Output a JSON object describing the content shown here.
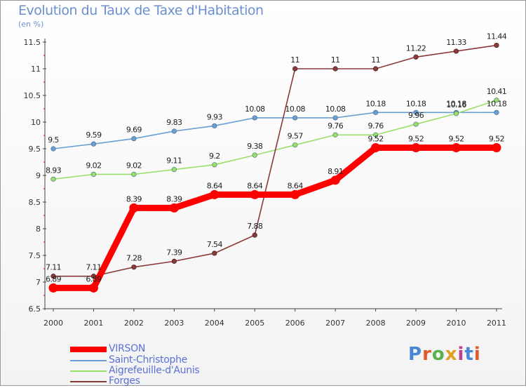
{
  "chart_data": {
    "type": "line",
    "title": "Evolution du Taux de Taxe d'Habitation",
    "subtitle": "(en %)",
    "x": [
      "2000",
      "2001",
      "2002",
      "2003",
      "2004",
      "2005",
      "2006",
      "2007",
      "2008",
      "2009",
      "2010",
      "2011"
    ],
    "ylim": [
      6.5,
      11.5
    ],
    "yticks": [
      "6.5",
      "7",
      "7.5",
      "8",
      "8.5",
      "9",
      "9.5",
      "10",
      "10.5",
      "11",
      "11.5"
    ],
    "grid": false,
    "legend_position": "bottom-left",
    "series": [
      {
        "name": "VIRSON",
        "color": "#ff0000",
        "values": [
          6.89,
          6.89,
          8.39,
          8.39,
          8.64,
          8.64,
          8.64,
          8.91,
          9.52,
          9.52,
          9.52,
          9.52
        ],
        "labels": [
          "6.89",
          "6.89",
          "8.39",
          "8.39",
          "8.64",
          "8.64",
          "8.64",
          "8.91",
          "9.52",
          "9.52",
          "9.52",
          "9.52"
        ]
      },
      {
        "name": "Saint-Christophe",
        "color": "#6a9fd4",
        "values": [
          9.5,
          9.59,
          9.69,
          9.83,
          9.93,
          10.08,
          10.08,
          10.08,
          10.18,
          10.18,
          10.18,
          10.18
        ],
        "labels": [
          "9.5",
          "9.59",
          "9.69",
          "9.83",
          "9.93",
          "10.08",
          "10.08",
          "10.08",
          "10.18",
          "10.18",
          "10.18",
          "10.18"
        ]
      },
      {
        "name": "Aigrefeuille-d'Aunis",
        "color": "#99e066",
        "values": [
          8.93,
          9.02,
          9.02,
          9.11,
          9.2,
          9.38,
          9.57,
          9.76,
          9.76,
          9.96,
          10.16,
          10.41
        ],
        "labels": [
          "8.93",
          "9.02",
          "9.02",
          "9.11",
          "9.2",
          "9.38",
          "9.57",
          "9.76",
          "9.76",
          "9.96",
          "10.16",
          "10.41"
        ]
      },
      {
        "name": "Forges",
        "color": "#8b3a3a",
        "values": [
          7.11,
          7.11,
          7.28,
          7.39,
          7.54,
          7.88,
          11,
          11,
          11,
          11.22,
          11.33,
          11.44
        ],
        "labels": [
          "7.11",
          "7.11",
          "7.28",
          "7.39",
          "7.54",
          "7.88",
          "11",
          "11",
          "11",
          "11.22",
          "11.33",
          "11.44"
        ]
      }
    ]
  },
  "logo": {
    "text": "Proxiti",
    "colors": [
      "#4a86d8",
      "#e05a2a",
      "#5ab04a",
      "#e0a020",
      "#c04090",
      "#4a86d8",
      "#e05a2a"
    ]
  }
}
